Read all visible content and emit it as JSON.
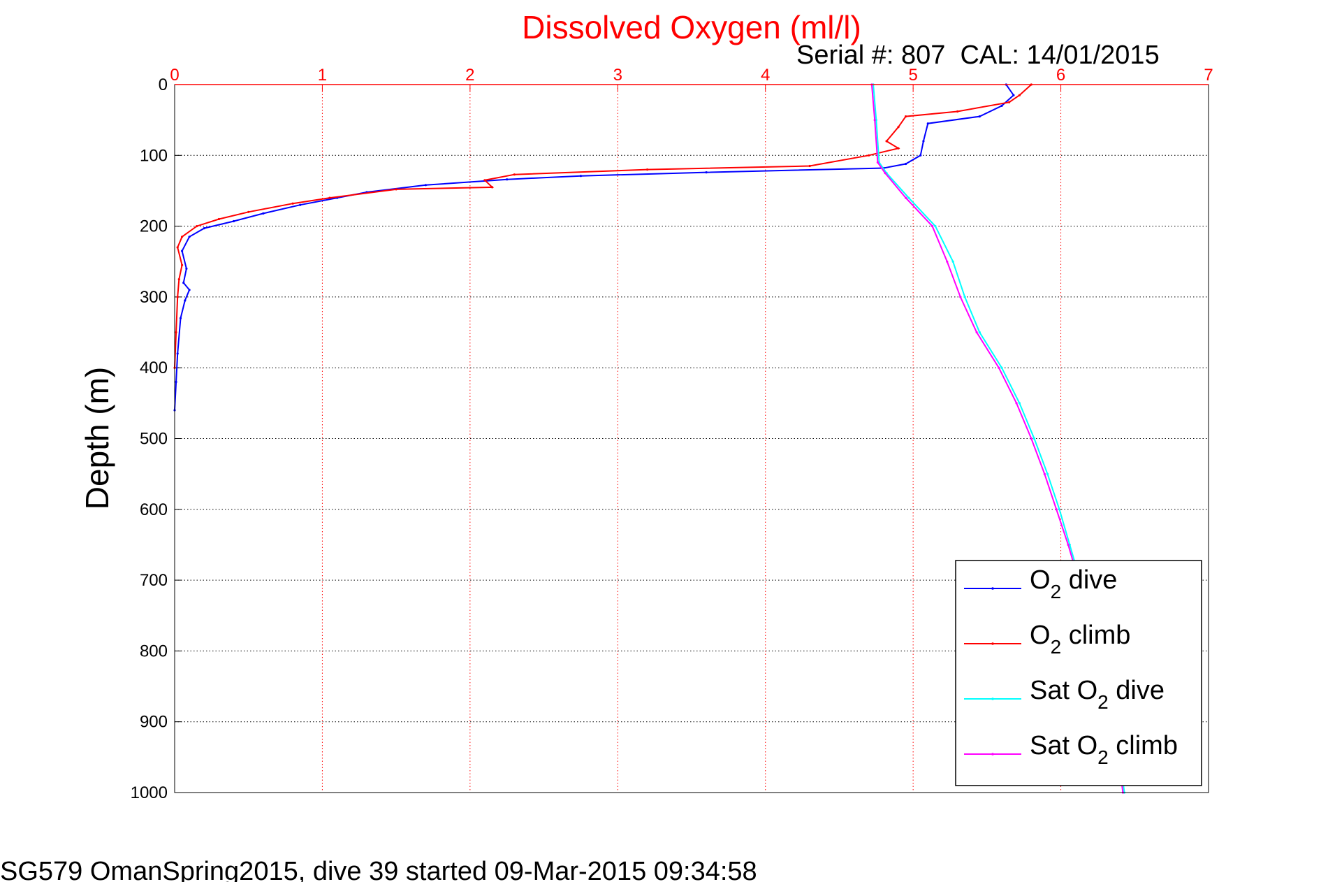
{
  "chart_data": {
    "type": "line",
    "title": "Dissolved Oxygen (ml/l)",
    "subtitle": "Serial #: 807  CAL: 14/01/2015",
    "ylabel": "Depth (m)",
    "footer": "SG579 OmanSpring2015, dive 39 started 09-Mar-2015 09:34:58",
    "xlim": [
      0,
      7
    ],
    "ylim": [
      0,
      1000
    ],
    "y_reversed": true,
    "x_axis_position": "top",
    "grid": true,
    "legend_position": "bottom-right",
    "x_ticks": [
      "0",
      "1",
      "2",
      "3",
      "4",
      "5",
      "6",
      "7"
    ],
    "y_ticks": [
      "0",
      "100",
      "200",
      "300",
      "400",
      "500",
      "600",
      "700",
      "800",
      "900",
      "1000"
    ],
    "series": [
      {
        "name": "O2 dive",
        "color": "#0000ff",
        "points": [
          [
            5.63,
            0
          ],
          [
            5.68,
            15
          ],
          [
            5.6,
            30
          ],
          [
            5.45,
            45
          ],
          [
            5.1,
            55
          ],
          [
            5.07,
            80
          ],
          [
            5.05,
            100
          ],
          [
            4.95,
            112
          ],
          [
            4.8,
            118
          ],
          [
            3.6,
            124
          ],
          [
            2.75,
            129
          ],
          [
            2.25,
            134
          ],
          [
            1.7,
            142
          ],
          [
            1.3,
            152
          ],
          [
            1.1,
            160
          ],
          [
            0.85,
            170
          ],
          [
            0.6,
            182
          ],
          [
            0.4,
            193
          ],
          [
            0.2,
            203
          ],
          [
            0.1,
            215
          ],
          [
            0.05,
            235
          ],
          [
            0.08,
            260
          ],
          [
            0.06,
            280
          ],
          [
            0.1,
            290
          ],
          [
            0.07,
            305
          ],
          [
            0.04,
            330
          ],
          [
            0.02,
            380
          ],
          [
            0.01,
            420
          ],
          [
            0,
            460
          ]
        ]
      },
      {
        "name": "O2 climb",
        "color": "#ff0000",
        "points": [
          [
            5.8,
            0
          ],
          [
            5.72,
            15
          ],
          [
            5.65,
            25
          ],
          [
            5.3,
            38
          ],
          [
            4.95,
            45
          ],
          [
            4.9,
            60
          ],
          [
            4.82,
            80
          ],
          [
            4.9,
            90
          ],
          [
            4.7,
            100
          ],
          [
            4.3,
            115
          ],
          [
            3.2,
            120
          ],
          [
            2.3,
            127
          ],
          [
            2.1,
            135
          ],
          [
            2.15,
            145
          ],
          [
            1.5,
            148
          ],
          [
            1.05,
            160
          ],
          [
            0.8,
            168
          ],
          [
            0.5,
            180
          ],
          [
            0.3,
            190
          ],
          [
            0.15,
            200
          ],
          [
            0.05,
            215
          ],
          [
            0.02,
            230
          ],
          [
            0.05,
            255
          ],
          [
            0.03,
            275
          ],
          [
            0.02,
            300
          ],
          [
            0.01,
            350
          ],
          [
            0,
            400
          ]
        ]
      },
      {
        "name": "Sat O2 dive",
        "color": "#00ffff",
        "points": [
          [
            4.73,
            0
          ],
          [
            4.75,
            50
          ],
          [
            4.77,
            110
          ],
          [
            4.82,
            125
          ],
          [
            4.97,
            160
          ],
          [
            5.15,
            200
          ],
          [
            5.27,
            250
          ],
          [
            5.35,
            300
          ],
          [
            5.45,
            350
          ],
          [
            5.6,
            400
          ],
          [
            5.72,
            450
          ],
          [
            5.82,
            500
          ],
          [
            5.91,
            550
          ],
          [
            5.99,
            600
          ],
          [
            6.06,
            650
          ],
          [
            6.13,
            700
          ],
          [
            6.19,
            750
          ],
          [
            6.24,
            800
          ],
          [
            6.3,
            850
          ],
          [
            6.35,
            900
          ],
          [
            6.4,
            950
          ],
          [
            6.43,
            1000
          ]
        ]
      },
      {
        "name": "Sat O2 climb",
        "color": "#ff00ff",
        "points": [
          [
            4.72,
            0
          ],
          [
            4.74,
            50
          ],
          [
            4.76,
            110
          ],
          [
            4.81,
            125
          ],
          [
            4.95,
            160
          ],
          [
            5.13,
            200
          ],
          [
            5.23,
            250
          ],
          [
            5.32,
            300
          ],
          [
            5.43,
            350
          ],
          [
            5.58,
            400
          ],
          [
            5.7,
            450
          ],
          [
            5.8,
            500
          ],
          [
            5.89,
            550
          ],
          [
            5.97,
            600
          ],
          [
            6.05,
            650
          ],
          [
            6.12,
            700
          ],
          [
            6.18,
            750
          ],
          [
            6.24,
            800
          ],
          [
            6.29,
            850
          ],
          [
            6.34,
            900
          ],
          [
            6.39,
            950
          ],
          [
            6.42,
            1000
          ]
        ]
      }
    ]
  },
  "legend": {
    "o2_dive": {
      "pre": "O",
      "sub": "2",
      "post": " dive"
    },
    "o2_climb": {
      "pre": "O",
      "sub": "2",
      "post": " climb"
    },
    "sat_dive": {
      "pre": "Sat O",
      "sub": "2",
      "post": " dive"
    },
    "sat_climb": {
      "pre": "Sat O",
      "sub": "2",
      "post": " climb"
    }
  }
}
